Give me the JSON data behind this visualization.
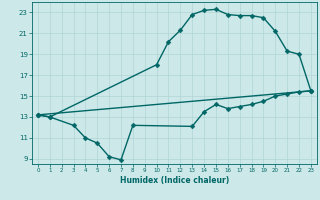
{
  "xlabel": "Humidex (Indice chaleur)",
  "xlim": [
    -0.5,
    23.5
  ],
  "ylim": [
    8.5,
    24.0
  ],
  "xticks": [
    0,
    1,
    2,
    3,
    4,
    5,
    6,
    7,
    8,
    9,
    10,
    11,
    12,
    13,
    14,
    15,
    16,
    17,
    18,
    19,
    20,
    21,
    22,
    23
  ],
  "yticks": [
    9,
    11,
    13,
    15,
    17,
    19,
    21,
    23
  ],
  "bg_color": "#cce8e8",
  "grid_color": "#b0d4d4",
  "line_color": "#006666",
  "line1_x": [
    0,
    1,
    10,
    11,
    12,
    13,
    14,
    15,
    16,
    17,
    18,
    19,
    20,
    21,
    22,
    23
  ],
  "line1_y": [
    13.2,
    13.0,
    18.0,
    20.2,
    21.3,
    22.8,
    23.2,
    23.3,
    22.8,
    22.7,
    22.7,
    22.5,
    21.2,
    19.3,
    19.0,
    15.5
  ],
  "line2_x": [
    0,
    23
  ],
  "line2_y": [
    13.2,
    15.5
  ],
  "line3_x": [
    0,
    1,
    3,
    4,
    5,
    6,
    7,
    8,
    13,
    14,
    15,
    16,
    17,
    18,
    19,
    20,
    21,
    22,
    23
  ],
  "line3_y": [
    13.2,
    13.0,
    12.2,
    11.0,
    10.5,
    9.2,
    8.9,
    12.2,
    12.1,
    13.5,
    14.2,
    13.8,
    14.0,
    14.2,
    14.5,
    15.0,
    15.2,
    15.4,
    15.5
  ],
  "markersize": 2.5,
  "linewidth": 1.0
}
